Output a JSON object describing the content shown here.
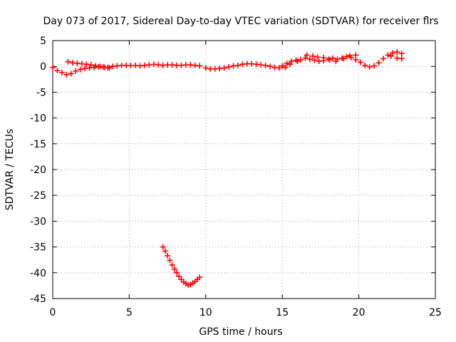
{
  "chart_data": {
    "type": "scatter",
    "title": "Day 073 of 2017, Sidereal Day-to-day VTEC variation (SDTVAR) for receiver flrs",
    "xlabel": "GPS time / hours",
    "ylabel": "SDTVAR / TECUs",
    "xlim": [
      0,
      25
    ],
    "ylim": [
      -45,
      5
    ],
    "xticks": [
      0,
      5,
      10,
      15,
      20,
      25
    ],
    "yticks": [
      5,
      0,
      -5,
      -10,
      -15,
      -20,
      -25,
      -30,
      -35,
      -40,
      -45
    ],
    "grid": true,
    "marker": "+",
    "color": "#ff0000",
    "series": [
      {
        "name": "main",
        "points": [
          [
            0.0,
            -0.2
          ],
          [
            0.3,
            -0.8
          ],
          [
            0.6,
            -1.2
          ],
          [
            0.9,
            -1.6
          ],
          [
            1.2,
            -1.4
          ],
          [
            1.5,
            -0.9
          ],
          [
            1.8,
            -0.6
          ],
          [
            2.1,
            -0.4
          ],
          [
            2.4,
            -0.3
          ],
          [
            2.7,
            -0.2
          ],
          [
            3.0,
            -0.1
          ],
          [
            3.3,
            -0.1
          ],
          [
            3.6,
            -0.2
          ],
          [
            3.9,
            0.0
          ],
          [
            4.2,
            0.1
          ],
          [
            4.5,
            0.2
          ],
          [
            4.8,
            0.2
          ],
          [
            5.1,
            0.2
          ],
          [
            5.4,
            0.2
          ],
          [
            5.7,
            0.1
          ],
          [
            6.0,
            0.2
          ],
          [
            6.3,
            0.3
          ],
          [
            6.6,
            0.4
          ],
          [
            6.9,
            0.3
          ],
          [
            7.2,
            0.2
          ],
          [
            7.5,
            0.3
          ],
          [
            7.8,
            0.3
          ],
          [
            8.1,
            0.2
          ],
          [
            8.4,
            0.2
          ],
          [
            8.7,
            0.3
          ],
          [
            9.0,
            0.3
          ],
          [
            9.3,
            0.2
          ],
          [
            9.6,
            0.1
          ],
          [
            10.0,
            -0.3
          ],
          [
            10.3,
            -0.5
          ],
          [
            10.6,
            -0.5
          ],
          [
            10.9,
            -0.4
          ],
          [
            11.2,
            -0.3
          ],
          [
            11.5,
            -0.1
          ],
          [
            11.8,
            0.1
          ],
          [
            12.1,
            0.2
          ],
          [
            12.4,
            0.4
          ],
          [
            12.7,
            0.5
          ],
          [
            13.0,
            0.5
          ],
          [
            13.3,
            0.4
          ],
          [
            13.6,
            0.3
          ],
          [
            13.9,
            0.2
          ],
          [
            14.2,
            0.0
          ],
          [
            14.5,
            -0.2
          ],
          [
            14.8,
            -0.3
          ],
          [
            15.0,
            0.1
          ],
          [
            15.3,
            0.6
          ],
          [
            15.6,
            1.0
          ],
          [
            15.9,
            1.2
          ],
          [
            16.2,
            1.3
          ],
          [
            16.5,
            1.6
          ],
          [
            16.8,
            1.4
          ],
          [
            17.1,
            1.2
          ],
          [
            17.4,
            1.0
          ],
          [
            17.7,
            1.1
          ],
          [
            18.0,
            1.4
          ],
          [
            18.3,
            1.6
          ],
          [
            18.6,
            1.4
          ],
          [
            18.9,
            1.6
          ],
          [
            19.2,
            1.9
          ],
          [
            19.5,
            1.7
          ],
          [
            19.8,
            1.3
          ],
          [
            20.1,
            0.8
          ],
          [
            20.4,
            0.2
          ],
          [
            20.7,
            -0.1
          ],
          [
            21.0,
            0.1
          ],
          [
            21.3,
            0.7
          ],
          [
            21.6,
            1.5
          ],
          [
            21.9,
            2.2
          ],
          [
            22.2,
            2.6
          ],
          [
            22.5,
            2.8
          ],
          [
            22.8,
            2.5
          ]
        ]
      },
      {
        "name": "overlap",
        "points": [
          [
            1.0,
            0.9
          ],
          [
            1.3,
            0.7
          ],
          [
            1.6,
            0.6
          ],
          [
            1.9,
            0.5
          ],
          [
            2.2,
            0.4
          ],
          [
            2.5,
            0.3
          ],
          [
            2.8,
            0.1
          ],
          [
            3.1,
            0.0
          ],
          [
            3.4,
            -0.2
          ],
          [
            3.7,
            -0.3
          ],
          [
            15.2,
            -0.2
          ],
          [
            15.5,
            0.4
          ],
          [
            16.0,
            1.0
          ],
          [
            16.6,
            2.2
          ],
          [
            17.0,
            2.0
          ],
          [
            17.3,
            1.8
          ],
          [
            17.7,
            1.7
          ],
          [
            18.1,
            1.3
          ],
          [
            18.5,
            1.0
          ],
          [
            19.0,
            1.5
          ],
          [
            19.4,
            2.1
          ],
          [
            19.8,
            2.2
          ],
          [
            22.1,
            2.0
          ],
          [
            22.5,
            1.6
          ],
          [
            22.8,
            1.5
          ]
        ]
      },
      {
        "name": "outlier",
        "points": [
          [
            7.2,
            -35.0
          ],
          [
            7.35,
            -35.8
          ],
          [
            7.5,
            -36.7
          ],
          [
            7.65,
            -37.6
          ],
          [
            7.8,
            -38.5
          ],
          [
            7.95,
            -39.3
          ],
          [
            8.1,
            -40.0
          ],
          [
            8.25,
            -40.7
          ],
          [
            8.4,
            -41.3
          ],
          [
            8.55,
            -41.8
          ],
          [
            8.7,
            -42.1
          ],
          [
            8.85,
            -42.4
          ],
          [
            9.0,
            -42.3
          ],
          [
            9.15,
            -42.0
          ],
          [
            9.3,
            -41.7
          ],
          [
            9.45,
            -41.3
          ],
          [
            9.6,
            -40.9
          ]
        ]
      }
    ]
  }
}
